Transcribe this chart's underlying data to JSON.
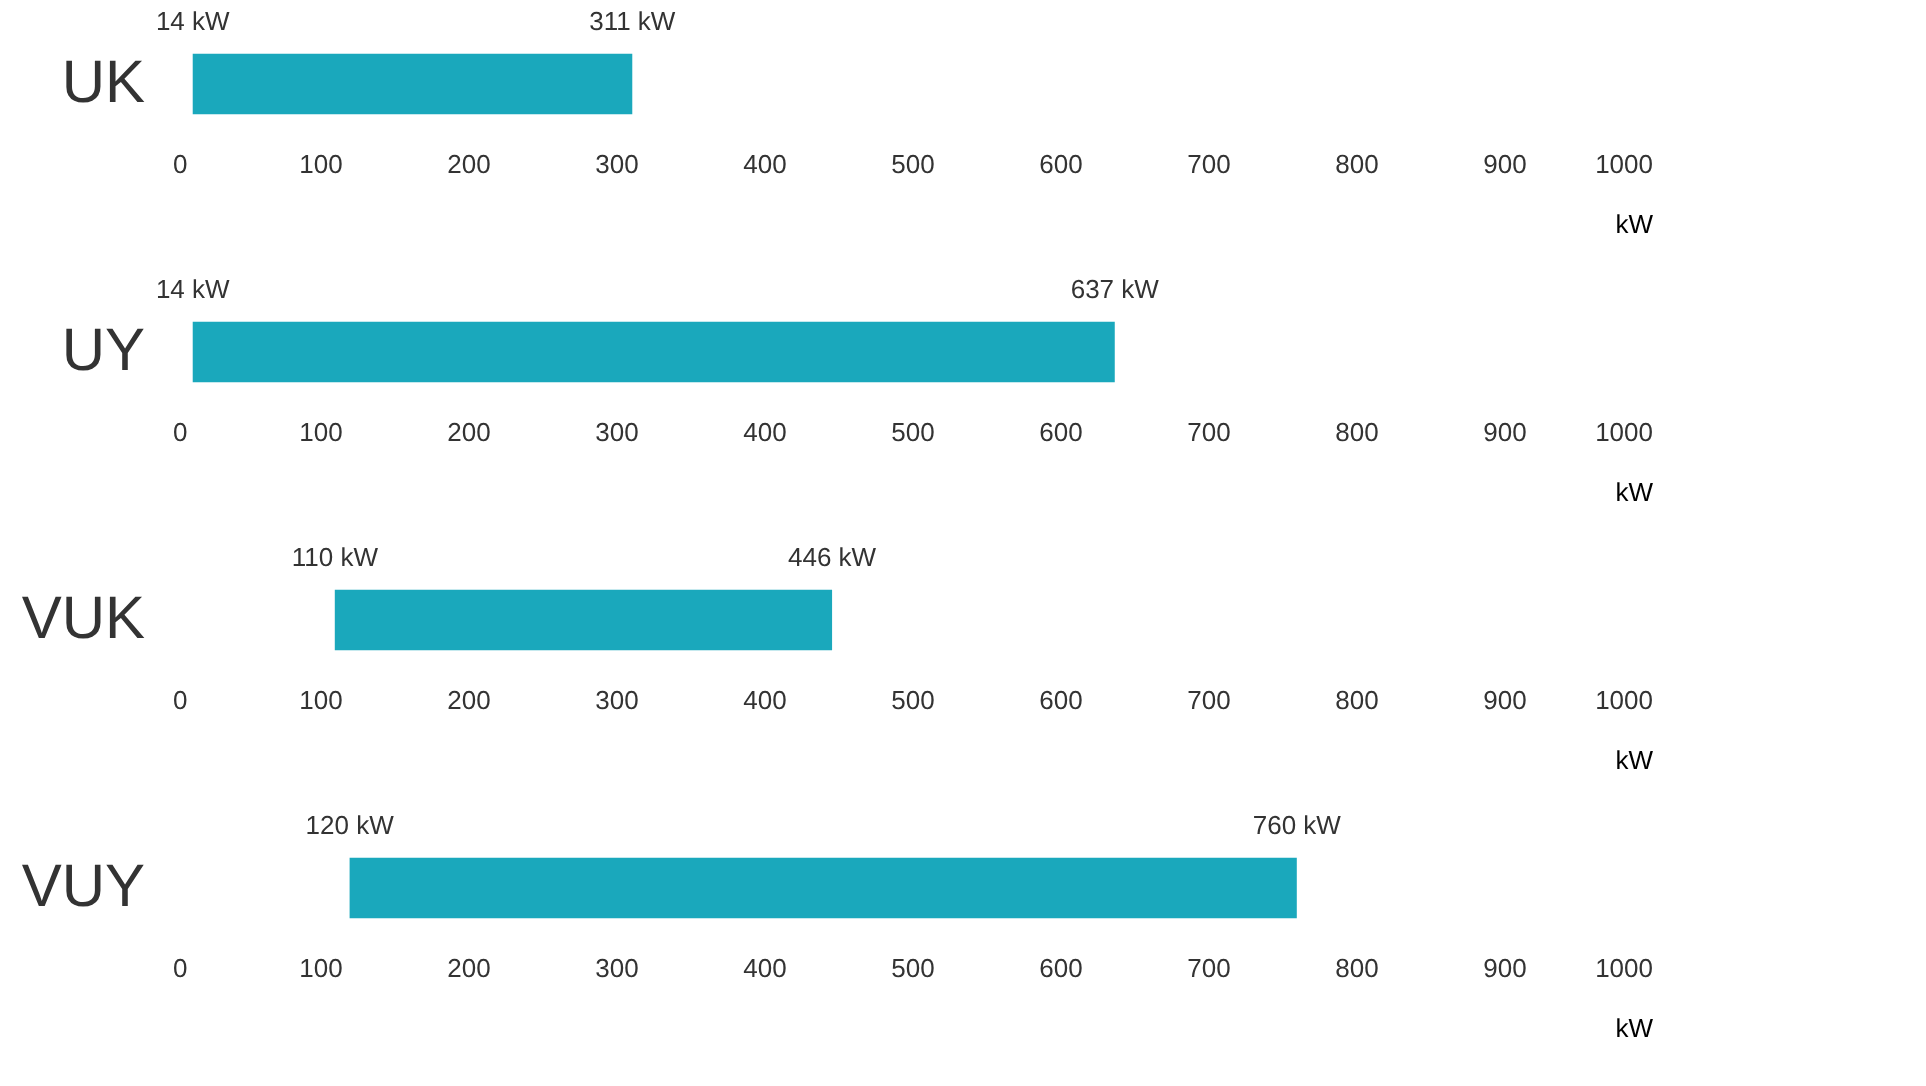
{
  "chart_data": [
    {
      "type": "bar",
      "orientation": "horizontal",
      "categories": [
        "UK"
      ],
      "base": [
        14
      ],
      "values": [
        297
      ],
      "color": "#1aa8bc",
      "xlim": [
        0,
        1000
      ],
      "xticks": [
        0,
        100,
        200,
        300,
        400,
        500,
        600,
        700,
        800,
        900,
        1000
      ],
      "xlabel": "kW",
      "grid": false,
      "annotations": [
        {
          "text": "14 kW",
          "x": 14,
          "y": "UK"
        },
        {
          "text": "311 kW",
          "x": 311,
          "y": "UK"
        }
      ]
    },
    {
      "type": "bar",
      "orientation": "horizontal",
      "categories": [
        "UY"
      ],
      "base": [
        14
      ],
      "values": [
        623
      ],
      "color": "#1aa8bc",
      "xlim": [
        0,
        1000
      ],
      "xticks": [
        0,
        100,
        200,
        300,
        400,
        500,
        600,
        700,
        800,
        900,
        1000
      ],
      "xlabel": "kW",
      "grid": false,
      "annotations": [
        {
          "text": "14 kW",
          "x": 14,
          "y": "UY"
        },
        {
          "text": "637 kW",
          "x": 637,
          "y": "UY"
        }
      ]
    },
    {
      "type": "bar",
      "orientation": "horizontal",
      "categories": [
        "VUK"
      ],
      "base": [
        110
      ],
      "values": [
        336
      ],
      "color": "#1aa8bc",
      "xlim": [
        0,
        1000
      ],
      "xticks": [
        0,
        100,
        200,
        300,
        400,
        500,
        600,
        700,
        800,
        900,
        1000
      ],
      "xlabel": "kW",
      "grid": false,
      "annotations": [
        {
          "text": "110 kW",
          "x": 110,
          "y": "VUK"
        },
        {
          "text": "446 kW",
          "x": 446,
          "y": "VUK"
        }
      ]
    },
    {
      "type": "bar",
      "orientation": "horizontal",
      "categories": [
        "VUY"
      ],
      "base": [
        120
      ],
      "values": [
        640
      ],
      "color": "#1aa8bc",
      "xlim": [
        0,
        1000
      ],
      "xticks": [
        0,
        100,
        200,
        300,
        400,
        500,
        600,
        700,
        800,
        900,
        1000
      ],
      "xlabel": "kW",
      "grid": false,
      "annotations": [
        {
          "text": "120 kW",
          "x": 120,
          "y": "VUY"
        },
        {
          "text": "760 kW",
          "x": 760,
          "y": "VUY"
        }
      ]
    }
  ]
}
